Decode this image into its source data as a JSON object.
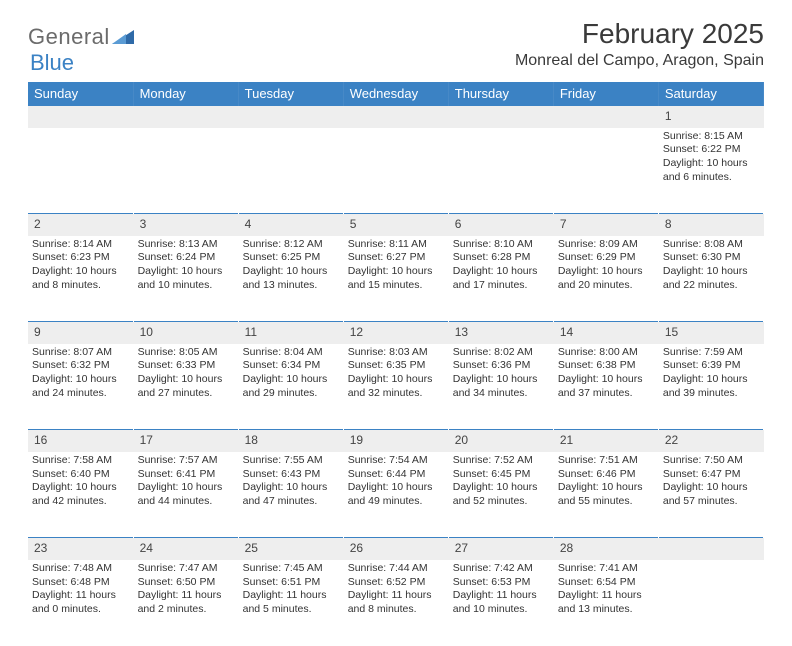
{
  "logo": {
    "word1": "General",
    "word2": "Blue"
  },
  "title": "February 2025",
  "location": "Monreal del Campo, Aragon, Spain",
  "colors": {
    "header_bg": "#3b82c4",
    "header_text": "#ffffff",
    "daynum_bg": "#eeeeee",
    "rule": "#3b82c4",
    "text": "#333333",
    "logo_gray": "#6b6b6b",
    "logo_blue": "#3b82c4",
    "page_bg": "#ffffff"
  },
  "typography": {
    "title_fontsize": 28,
    "location_fontsize": 16,
    "dayheader_fontsize": 13,
    "daynum_fontsize": 12,
    "cell_fontsize": 10.5
  },
  "day_headers": [
    "Sunday",
    "Monday",
    "Tuesday",
    "Wednesday",
    "Thursday",
    "Friday",
    "Saturday"
  ],
  "weeks": [
    {
      "nums": [
        "",
        "",
        "",
        "",
        "",
        "",
        "1"
      ],
      "cells": [
        null,
        null,
        null,
        null,
        null,
        null,
        {
          "sunrise": "Sunrise: 8:15 AM",
          "sunset": "Sunset: 6:22 PM",
          "daylight": "Daylight: 10 hours and 6 minutes."
        }
      ]
    },
    {
      "nums": [
        "2",
        "3",
        "4",
        "5",
        "6",
        "7",
        "8"
      ],
      "cells": [
        {
          "sunrise": "Sunrise: 8:14 AM",
          "sunset": "Sunset: 6:23 PM",
          "daylight": "Daylight: 10 hours and 8 minutes."
        },
        {
          "sunrise": "Sunrise: 8:13 AM",
          "sunset": "Sunset: 6:24 PM",
          "daylight": "Daylight: 10 hours and 10 minutes."
        },
        {
          "sunrise": "Sunrise: 8:12 AM",
          "sunset": "Sunset: 6:25 PM",
          "daylight": "Daylight: 10 hours and 13 minutes."
        },
        {
          "sunrise": "Sunrise: 8:11 AM",
          "sunset": "Sunset: 6:27 PM",
          "daylight": "Daylight: 10 hours and 15 minutes."
        },
        {
          "sunrise": "Sunrise: 8:10 AM",
          "sunset": "Sunset: 6:28 PM",
          "daylight": "Daylight: 10 hours and 17 minutes."
        },
        {
          "sunrise": "Sunrise: 8:09 AM",
          "sunset": "Sunset: 6:29 PM",
          "daylight": "Daylight: 10 hours and 20 minutes."
        },
        {
          "sunrise": "Sunrise: 8:08 AM",
          "sunset": "Sunset: 6:30 PM",
          "daylight": "Daylight: 10 hours and 22 minutes."
        }
      ]
    },
    {
      "nums": [
        "9",
        "10",
        "11",
        "12",
        "13",
        "14",
        "15"
      ],
      "cells": [
        {
          "sunrise": "Sunrise: 8:07 AM",
          "sunset": "Sunset: 6:32 PM",
          "daylight": "Daylight: 10 hours and 24 minutes."
        },
        {
          "sunrise": "Sunrise: 8:05 AM",
          "sunset": "Sunset: 6:33 PM",
          "daylight": "Daylight: 10 hours and 27 minutes."
        },
        {
          "sunrise": "Sunrise: 8:04 AM",
          "sunset": "Sunset: 6:34 PM",
          "daylight": "Daylight: 10 hours and 29 minutes."
        },
        {
          "sunrise": "Sunrise: 8:03 AM",
          "sunset": "Sunset: 6:35 PM",
          "daylight": "Daylight: 10 hours and 32 minutes."
        },
        {
          "sunrise": "Sunrise: 8:02 AM",
          "sunset": "Sunset: 6:36 PM",
          "daylight": "Daylight: 10 hours and 34 minutes."
        },
        {
          "sunrise": "Sunrise: 8:00 AM",
          "sunset": "Sunset: 6:38 PM",
          "daylight": "Daylight: 10 hours and 37 minutes."
        },
        {
          "sunrise": "Sunrise: 7:59 AM",
          "sunset": "Sunset: 6:39 PM",
          "daylight": "Daylight: 10 hours and 39 minutes."
        }
      ]
    },
    {
      "nums": [
        "16",
        "17",
        "18",
        "19",
        "20",
        "21",
        "22"
      ],
      "cells": [
        {
          "sunrise": "Sunrise: 7:58 AM",
          "sunset": "Sunset: 6:40 PM",
          "daylight": "Daylight: 10 hours and 42 minutes."
        },
        {
          "sunrise": "Sunrise: 7:57 AM",
          "sunset": "Sunset: 6:41 PM",
          "daylight": "Daylight: 10 hours and 44 minutes."
        },
        {
          "sunrise": "Sunrise: 7:55 AM",
          "sunset": "Sunset: 6:43 PM",
          "daylight": "Daylight: 10 hours and 47 minutes."
        },
        {
          "sunrise": "Sunrise: 7:54 AM",
          "sunset": "Sunset: 6:44 PM",
          "daylight": "Daylight: 10 hours and 49 minutes."
        },
        {
          "sunrise": "Sunrise: 7:52 AM",
          "sunset": "Sunset: 6:45 PM",
          "daylight": "Daylight: 10 hours and 52 minutes."
        },
        {
          "sunrise": "Sunrise: 7:51 AM",
          "sunset": "Sunset: 6:46 PM",
          "daylight": "Daylight: 10 hours and 55 minutes."
        },
        {
          "sunrise": "Sunrise: 7:50 AM",
          "sunset": "Sunset: 6:47 PM",
          "daylight": "Daylight: 10 hours and 57 minutes."
        }
      ]
    },
    {
      "nums": [
        "23",
        "24",
        "25",
        "26",
        "27",
        "28",
        ""
      ],
      "cells": [
        {
          "sunrise": "Sunrise: 7:48 AM",
          "sunset": "Sunset: 6:48 PM",
          "daylight": "Daylight: 11 hours and 0 minutes."
        },
        {
          "sunrise": "Sunrise: 7:47 AM",
          "sunset": "Sunset: 6:50 PM",
          "daylight": "Daylight: 11 hours and 2 minutes."
        },
        {
          "sunrise": "Sunrise: 7:45 AM",
          "sunset": "Sunset: 6:51 PM",
          "daylight": "Daylight: 11 hours and 5 minutes."
        },
        {
          "sunrise": "Sunrise: 7:44 AM",
          "sunset": "Sunset: 6:52 PM",
          "daylight": "Daylight: 11 hours and 8 minutes."
        },
        {
          "sunrise": "Sunrise: 7:42 AM",
          "sunset": "Sunset: 6:53 PM",
          "daylight": "Daylight: 11 hours and 10 minutes."
        },
        {
          "sunrise": "Sunrise: 7:41 AM",
          "sunset": "Sunset: 6:54 PM",
          "daylight": "Daylight: 11 hours and 13 minutes."
        },
        null
      ]
    }
  ]
}
